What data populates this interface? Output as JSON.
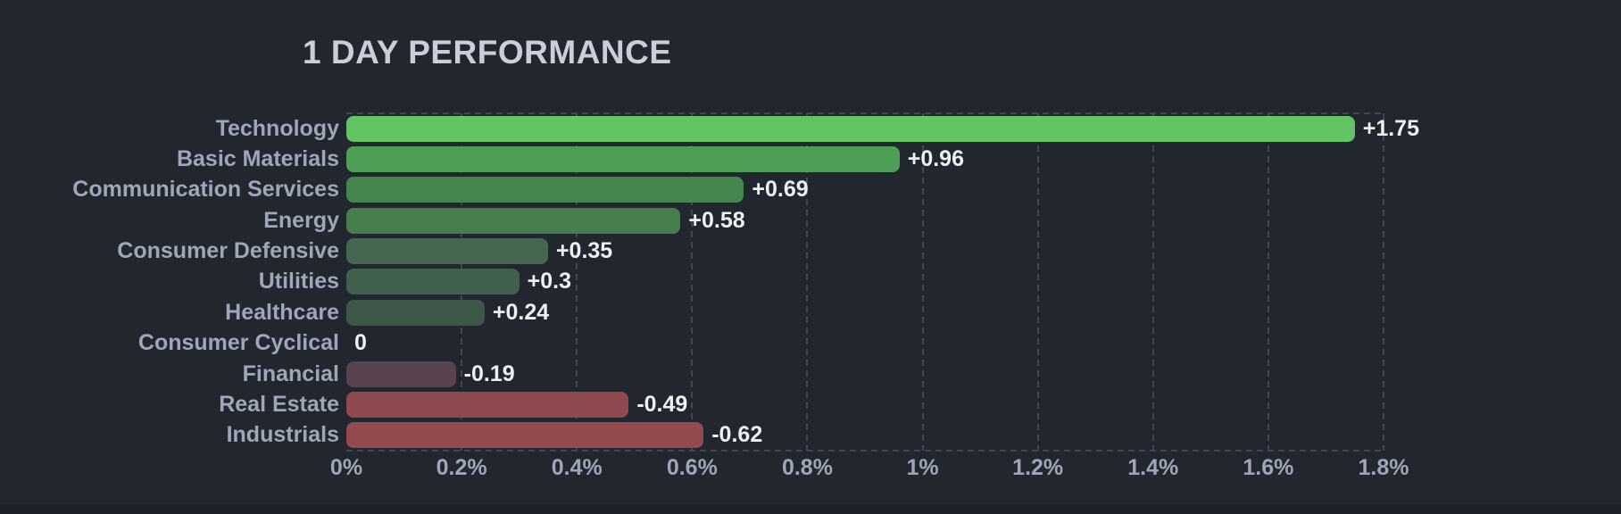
{
  "title": "1 DAY PERFORMANCE",
  "colors": {
    "background": "#22262f",
    "footer_strip": "#1e212a",
    "title_text": "#c9ced9",
    "category_text": "#9ea6b7",
    "value_text": "#edeff2",
    "grid_line": "#404656",
    "positive_max": "#62c463",
    "negative_max": "#954a4f"
  },
  "chart_data": {
    "type": "bar",
    "orientation": "horizontal",
    "title": "1 DAY PERFORMANCE",
    "xlabel": "",
    "ylabel": "",
    "unit": "%",
    "xlim": [
      0,
      1.8
    ],
    "grid": "vertical-dashed",
    "legend": "none",
    "categories": [
      "Technology",
      "Basic Materials",
      "Communication Services",
      "Energy",
      "Consumer Defensive",
      "Utilities",
      "Healthcare",
      "Consumer Cyclical",
      "Financial",
      "Real Estate",
      "Industrials"
    ],
    "values": [
      1.75,
      0.96,
      0.69,
      0.58,
      0.35,
      0.3,
      0.24,
      0,
      -0.19,
      -0.49,
      -0.62
    ],
    "value_labels": [
      "+1.75",
      "+0.96",
      "+0.69",
      "+0.58",
      "+0.35",
      "+0.3",
      "+0.24",
      "0",
      "-0.19",
      "-0.49",
      "-0.62"
    ],
    "bar_colors": [
      "#62c463",
      "#4f9e55",
      "#478550",
      "#467e4e",
      "#45674f",
      "#42614c",
      "#3f5749",
      null,
      "#5a4350",
      "#8f4a4f",
      "#954a4f"
    ],
    "x_tick_values": [
      0,
      0.2,
      0.4,
      0.6,
      0.8,
      1,
      1.2,
      1.4,
      1.6,
      1.8
    ],
    "x_tick_labels": [
      "0%",
      "0.2%",
      "0.4%",
      "0.6%",
      "0.8%",
      "1%",
      "1.2%",
      "1.4%",
      "1.6%",
      "1.8%"
    ]
  }
}
